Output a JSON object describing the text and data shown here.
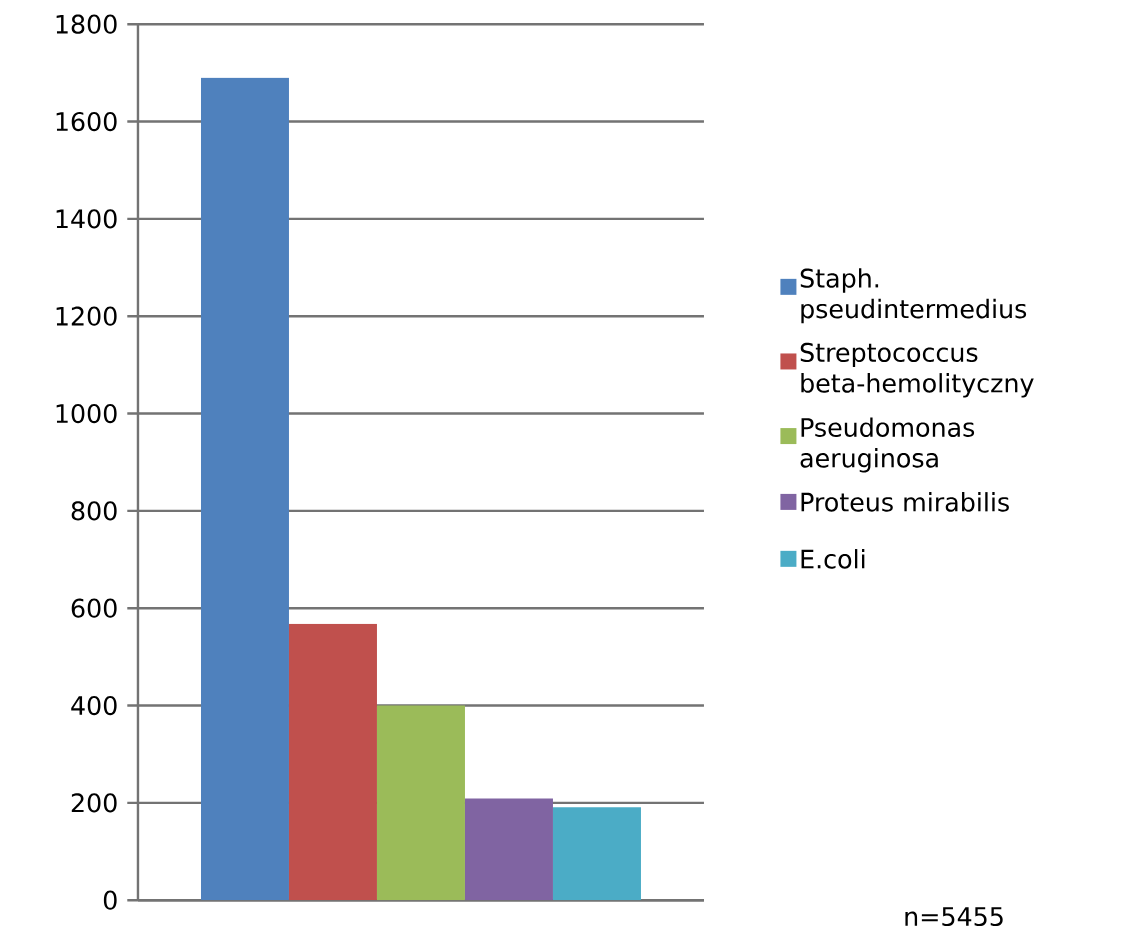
{
  "chart_data": {
    "type": "bar",
    "categories": [
      null
    ],
    "series": [
      {
        "name": "Staph. pseudintermedius",
        "color": "#4f81bd",
        "values": [
          1690
        ]
      },
      {
        "name": "Streptococcus beta-hemolityczny",
        "color": "#c0504d",
        "values": [
          568
        ]
      },
      {
        "name": "Pseudomonas aeruginosa",
        "color": "#9bbb59",
        "values": [
          400
        ]
      },
      {
        "name": "Proteus mirabilis",
        "color": "#8064a2",
        "values": [
          209
        ]
      },
      {
        "name": "E.coli",
        "color": "#4bacc6",
        "values": [
          191
        ]
      }
    ],
    "ylim": [
      0,
      1800
    ],
    "yticks": [
      0,
      200,
      400,
      600,
      800,
      1000,
      1200,
      1400,
      1600,
      1800
    ],
    "grid": "y",
    "legend": "right",
    "annotations": [
      "n=5455"
    ]
  }
}
